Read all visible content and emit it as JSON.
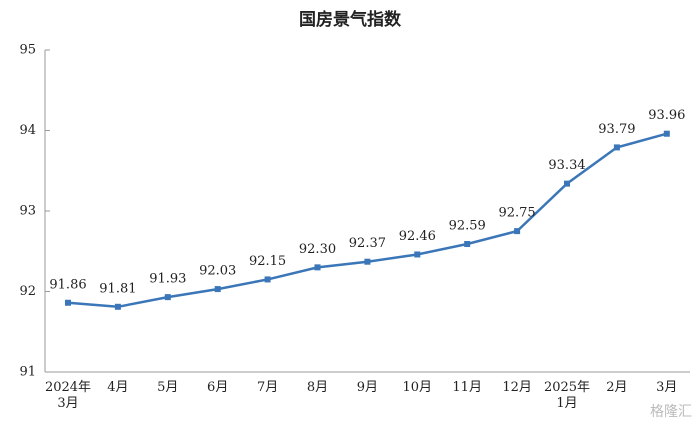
{
  "chart_data": {
    "type": "line",
    "title": "国房景气指数",
    "categories": [
      "2024年\n3月",
      "4月",
      "5月",
      "6月",
      "7月",
      "8月",
      "9月",
      "10月",
      "11月",
      "12月",
      "2025年\n1月",
      "2月",
      "3月"
    ],
    "series": [
      {
        "name": "国房景气指数",
        "color": "#3a76b8",
        "values": [
          91.86,
          91.81,
          91.93,
          92.03,
          92.15,
          92.3,
          92.37,
          92.46,
          92.59,
          92.75,
          93.34,
          93.79,
          93.96
        ],
        "value_labels": [
          "91.86",
          "91.81",
          "91.93",
          "92.03",
          "92.15",
          "92.30",
          "92.37",
          "92.46",
          "92.59",
          "92.75",
          "93.34",
          "93.79",
          "93.96"
        ]
      }
    ],
    "ylim": [
      91,
      95
    ],
    "yticks": [
      91,
      92,
      93,
      94,
      95
    ],
    "grid": false,
    "watermark": "格隆汇"
  }
}
